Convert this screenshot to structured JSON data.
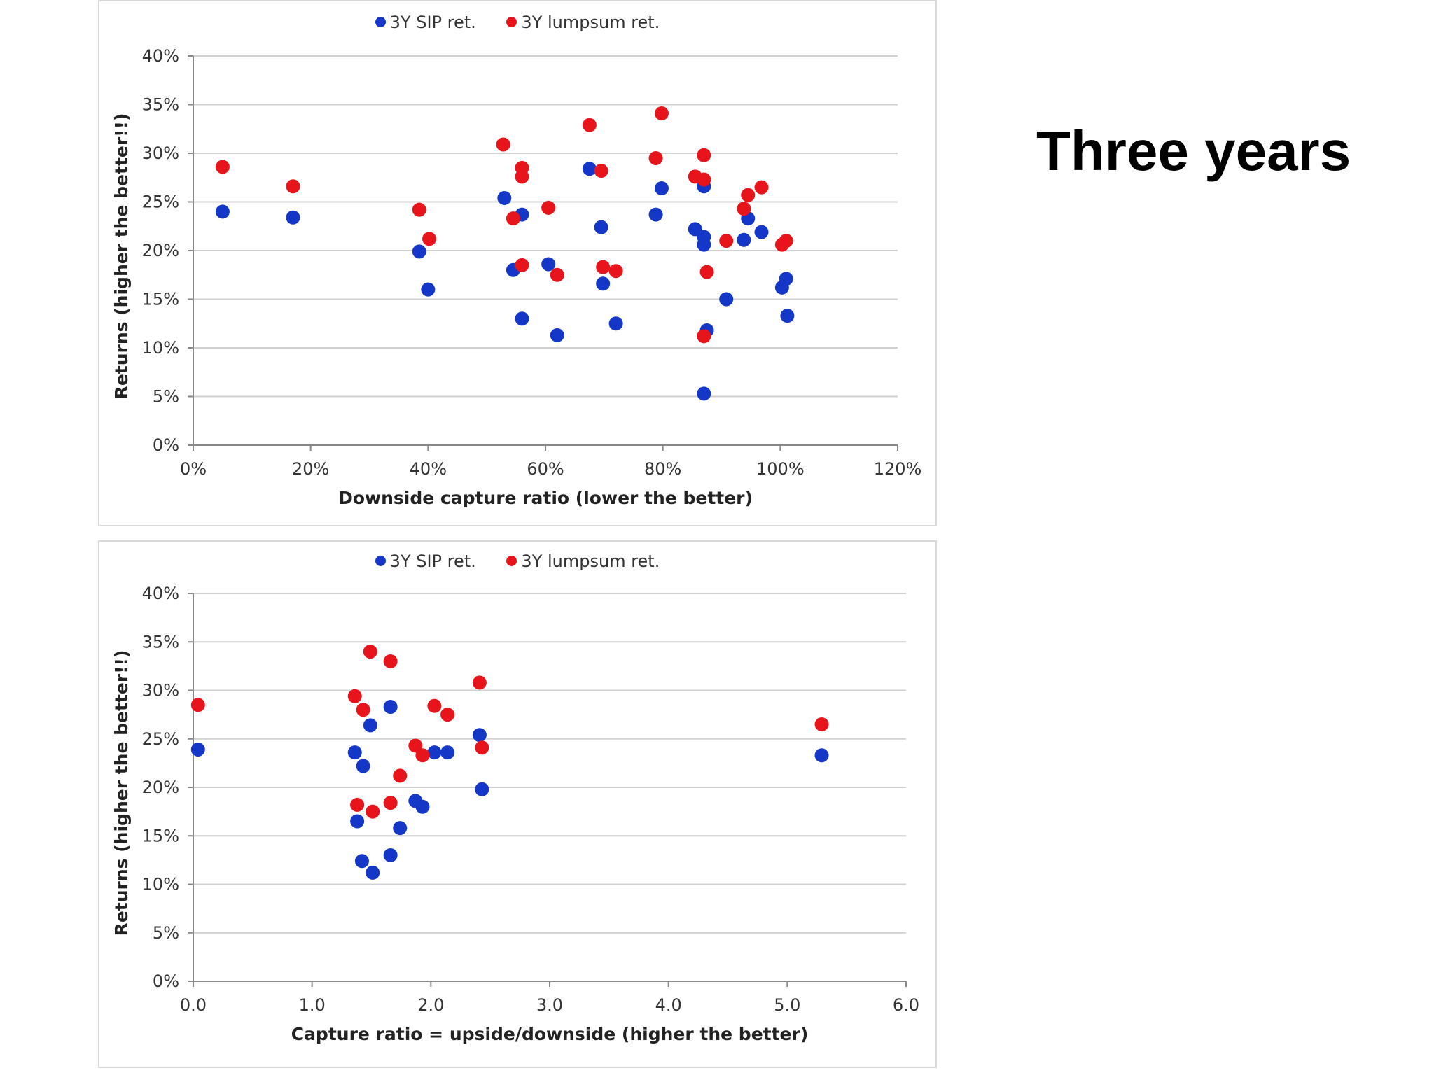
{
  "slide": {
    "title": "Three years"
  },
  "colors": {
    "sip": "#1437c8",
    "lumpsum": "#e8141b",
    "grid": "#d0d0d0",
    "axis": "#888888"
  },
  "legend": {
    "sip_label": "3Y SIP ret.",
    "lumpsum_label": "3Y lumpsum ret."
  },
  "chart_data": [
    {
      "type": "scatter",
      "xlabel": "Downside capture ratio (lower the better)",
      "ylabel": "Returns (higher the better!!)",
      "xlim": [
        0,
        120
      ],
      "ylim": [
        0,
        40
      ],
      "x_ticks": [
        "0%",
        "20%",
        "40%",
        "60%",
        "80%",
        "100%",
        "120%"
      ],
      "y_ticks": [
        "0%",
        "5%",
        "10%",
        "15%",
        "20%",
        "25%",
        "30%",
        "35%",
        "40%"
      ],
      "grid": "horizontal",
      "legend_position": "top",
      "series": [
        {
          "name": "3Y SIP ret.",
          "color": "sip",
          "points": [
            [
              5,
              24
            ],
            [
              17,
              23.4
            ],
            [
              38.5,
              19.9
            ],
            [
              40,
              16
            ],
            [
              53,
              25.4
            ],
            [
              54.5,
              18
            ],
            [
              56,
              23.7
            ],
            [
              56,
              13
            ],
            [
              60.5,
              18.6
            ],
            [
              62,
              11.3
            ],
            [
              67.5,
              28.4
            ],
            [
              69.5,
              22.4
            ],
            [
              69.8,
              16.6
            ],
            [
              72,
              12.5
            ],
            [
              78.8,
              23.7
            ],
            [
              79.8,
              26.4
            ],
            [
              85.5,
              22.2
            ],
            [
              87,
              26.6
            ],
            [
              87,
              21.4
            ],
            [
              87,
              20.6
            ],
            [
              87.5,
              11.8
            ],
            [
              87,
              5.3
            ],
            [
              90.8,
              15
            ],
            [
              93.8,
              21.1
            ],
            [
              94.5,
              23.3
            ],
            [
              96.8,
              21.9
            ],
            [
              100.3,
              16.2
            ],
            [
              101,
              17.1
            ],
            [
              101.2,
              13.3
            ]
          ]
        },
        {
          "name": "3Y lumpsum ret.",
          "color": "lumpsum",
          "points": [
            [
              5,
              28.6
            ],
            [
              17,
              26.6
            ],
            [
              38.5,
              24.2
            ],
            [
              40.2,
              21.2
            ],
            [
              52.8,
              30.9
            ],
            [
              54.5,
              23.3
            ],
            [
              56,
              28.5
            ],
            [
              56,
              27.6
            ],
            [
              56,
              18.5
            ],
            [
              60.5,
              24.4
            ],
            [
              62,
              17.5
            ],
            [
              67.5,
              32.9
            ],
            [
              69.5,
              28.2
            ],
            [
              69.8,
              18.3
            ],
            [
              72,
              17.9
            ],
            [
              78.8,
              29.5
            ],
            [
              79.8,
              34.1
            ],
            [
              85.5,
              27.6
            ],
            [
              87,
              27.3
            ],
            [
              87,
              29.8
            ],
            [
              87.5,
              17.8
            ],
            [
              87,
              11.2
            ],
            [
              90.8,
              21
            ],
            [
              93.8,
              24.3
            ],
            [
              94.5,
              25.7
            ],
            [
              96.8,
              26.5
            ],
            [
              100.3,
              20.6
            ],
            [
              101,
              21
            ]
          ]
        }
      ]
    },
    {
      "type": "scatter",
      "xlabel": "Capture ratio = upside/downside (higher the better)",
      "ylabel": "Returns (higher the better!!)",
      "xlim": [
        0,
        6
      ],
      "ylim": [
        0,
        40
      ],
      "x_ticks": [
        "0.0",
        "1.0",
        "2.0",
        "3.0",
        "4.0",
        "5.0",
        "6.0"
      ],
      "y_ticks": [
        "0%",
        "5%",
        "10%",
        "15%",
        "20%",
        "25%",
        "30%",
        "35%",
        "40%"
      ],
      "grid": "horizontal",
      "legend_position": "top",
      "series": [
        {
          "name": "3Y SIP ret.",
          "color": "sip",
          "points": [
            [
              0.04,
              23.9
            ],
            [
              1.36,
              23.6
            ],
            [
              1.43,
              22.2
            ],
            [
              1.49,
              26.4
            ],
            [
              1.38,
              16.5
            ],
            [
              1.42,
              12.4
            ],
            [
              1.51,
              11.2
            ],
            [
              1.66,
              13
            ],
            [
              1.66,
              28.3
            ],
            [
              1.74,
              15.8
            ],
            [
              1.87,
              18.6
            ],
            [
              1.93,
              18
            ],
            [
              2.03,
              23.6
            ],
            [
              2.14,
              23.6
            ],
            [
              2.41,
              25.4
            ],
            [
              2.43,
              19.8
            ],
            [
              5.29,
              23.3
            ]
          ]
        },
        {
          "name": "3Y lumpsum ret.",
          "color": "lumpsum",
          "points": [
            [
              0.04,
              28.5
            ],
            [
              1.36,
              29.4
            ],
            [
              1.43,
              28
            ],
            [
              1.49,
              34
            ],
            [
              1.38,
              18.2
            ],
            [
              1.51,
              17.5
            ],
            [
              1.66,
              18.4
            ],
            [
              1.66,
              33
            ],
            [
              1.74,
              21.2
            ],
            [
              1.87,
              24.3
            ],
            [
              1.93,
              23.3
            ],
            [
              2.03,
              28.4
            ],
            [
              2.14,
              27.5
            ],
            [
              2.41,
              30.8
            ],
            [
              2.43,
              24.1
            ],
            [
              5.29,
              26.5
            ]
          ]
        }
      ]
    }
  ]
}
